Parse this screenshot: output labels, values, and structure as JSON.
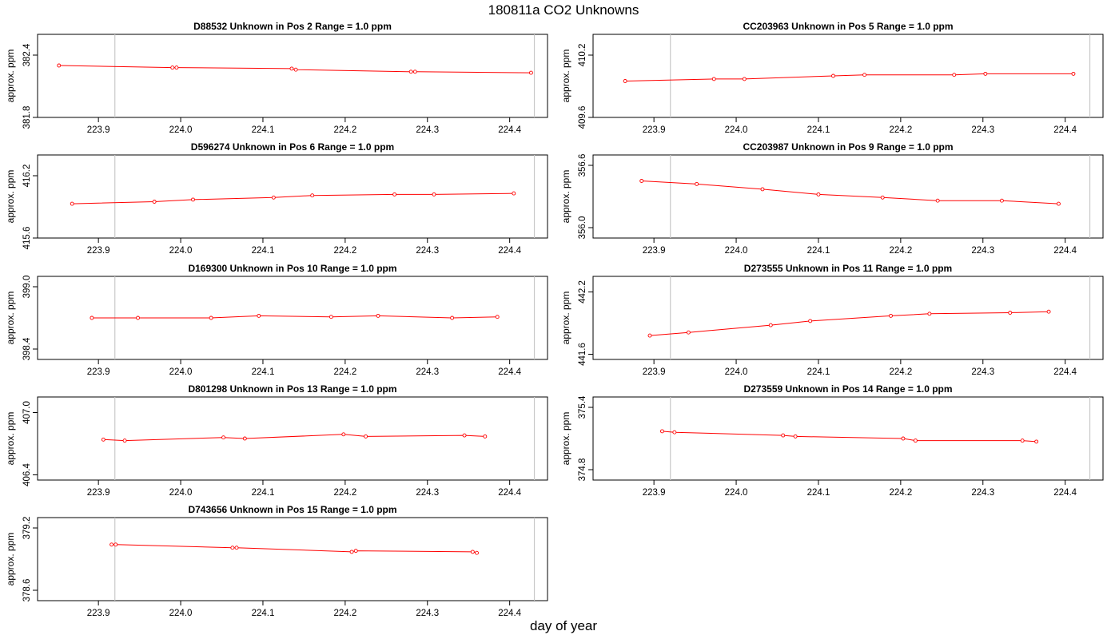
{
  "page_title": "180811a  CO2 Unknowns",
  "x_axis_label": "day of year",
  "y_axis_label": "approx. ppm",
  "chart_data": [
    {
      "type": "line",
      "title": "D88532    Unknown in Pos 2         Range = 1.0 ppm",
      "xlabel": "day of year",
      "ylabel": "approx. ppm",
      "xlim": [
        223.826,
        224.446
      ],
      "ylim": [
        381.8,
        382.6
      ],
      "xticks": [
        "223.9",
        "224.0",
        "224.1",
        "224.2",
        "224.3",
        "224.4"
      ],
      "yticks": [
        "381.8",
        "382.4"
      ],
      "vlines": [
        223.92,
        224.43
      ],
      "x": [
        223.852,
        223.99,
        223.995,
        224.135,
        224.14,
        224.28,
        224.285,
        224.426
      ],
      "y": [
        382.3,
        382.28,
        382.28,
        382.27,
        382.26,
        382.24,
        382.24,
        382.23
      ]
    },
    {
      "type": "line",
      "title": "CC203963    Unknown in Pos 5         Range = 1.0 ppm",
      "xlabel": "day of year",
      "ylabel": "approx. ppm",
      "xlim": [
        223.826,
        224.446
      ],
      "ylim": [
        409.6,
        410.4
      ],
      "xticks": [
        "223.9",
        "224.0",
        "224.1",
        "224.2",
        "224.3",
        "224.4"
      ],
      "yticks": [
        "409.6",
        "410.2"
      ],
      "vlines": [
        223.92,
        224.43
      ],
      "x": [
        223.865,
        223.973,
        224.01,
        224.118,
        224.156,
        224.265,
        224.303,
        224.41
      ],
      "y": [
        409.95,
        409.97,
        409.97,
        410.0,
        410.01,
        410.01,
        410.02,
        410.02
      ]
    },
    {
      "type": "line",
      "title": "D596274    Unknown in Pos 6         Range = 1.0 ppm",
      "xlabel": "day of year",
      "ylabel": "approx. ppm",
      "xlim": [
        223.826,
        224.446
      ],
      "ylim": [
        415.6,
        416.4
      ],
      "xticks": [
        "223.9",
        "224.0",
        "224.1",
        "224.2",
        "224.3",
        "224.4"
      ],
      "yticks": [
        "415.6",
        "416.2"
      ],
      "vlines": [
        223.92,
        224.43
      ],
      "x": [
        223.868,
        223.968,
        224.015,
        224.113,
        224.16,
        224.26,
        224.308,
        224.405
      ],
      "y": [
        415.93,
        415.95,
        415.97,
        415.99,
        416.01,
        416.02,
        416.02,
        416.03
      ]
    },
    {
      "type": "line",
      "title": "CC203987    Unknown in Pos 9         Range = 1.0 ppm",
      "xlabel": "day of year",
      "ylabel": "approx. ppm",
      "xlim": [
        223.826,
        224.446
      ],
      "ylim": [
        355.9,
        356.7
      ],
      "xticks": [
        "223.9",
        "224.0",
        "224.1",
        "224.2",
        "224.3",
        "224.4"
      ],
      "yticks": [
        "356.0",
        "356.6"
      ],
      "vlines": [
        223.92,
        224.43
      ],
      "x": [
        223.885,
        223.952,
        224.032,
        224.1,
        224.178,
        224.245,
        224.323,
        224.392
      ],
      "y": [
        356.45,
        356.42,
        356.37,
        356.32,
        356.29,
        356.26,
        356.26,
        356.23
      ]
    },
    {
      "type": "line",
      "title": "D169300    Unknown in Pos 10         Range = 1.0 ppm",
      "xlabel": "day of year",
      "ylabel": "approx. ppm",
      "xlim": [
        223.826,
        224.446
      ],
      "ylim": [
        398.3,
        399.1
      ],
      "xticks": [
        "223.9",
        "224.0",
        "224.1",
        "224.2",
        "224.3",
        "224.4"
      ],
      "yticks": [
        "398.4",
        "399.0"
      ],
      "vlines": [
        223.92,
        224.43
      ],
      "x": [
        223.892,
        223.948,
        224.037,
        224.095,
        224.183,
        224.24,
        224.33,
        224.385
      ],
      "y": [
        398.7,
        398.7,
        398.7,
        398.72,
        398.71,
        398.72,
        398.7,
        398.71
      ]
    },
    {
      "type": "line",
      "title": "D273555    Unknown in Pos 11         Range = 1.0 ppm",
      "xlabel": "day of year",
      "ylabel": "approx. ppm",
      "xlim": [
        223.826,
        224.446
      ],
      "ylim": [
        441.55,
        442.35
      ],
      "xticks": [
        "223.9",
        "224.0",
        "224.1",
        "224.2",
        "224.3",
        "224.4"
      ],
      "yticks": [
        "441.6",
        "442.2"
      ],
      "vlines": [
        223.92,
        224.43
      ],
      "x": [
        223.895,
        223.942,
        224.042,
        224.09,
        224.188,
        224.235,
        224.333,
        224.38
      ],
      "y": [
        441.78,
        441.81,
        441.88,
        441.92,
        441.97,
        441.99,
        442.0,
        442.01
      ]
    },
    {
      "type": "line",
      "title": "D801298    Unknown in Pos 13         Range = 1.0 ppm",
      "xlabel": "day of year",
      "ylabel": "approx. ppm",
      "xlim": [
        223.826,
        224.446
      ],
      "ylim": [
        406.35,
        407.15
      ],
      "xticks": [
        "223.9",
        "224.0",
        "224.1",
        "224.2",
        "224.3",
        "224.4"
      ],
      "yticks": [
        "406.4",
        "407.0"
      ],
      "vlines": [
        223.92,
        224.43
      ],
      "x": [
        223.906,
        223.932,
        224.052,
        224.078,
        224.198,
        224.225,
        224.345,
        224.37
      ],
      "y": [
        406.74,
        406.73,
        406.76,
        406.75,
        406.79,
        406.77,
        406.78,
        406.77
      ]
    },
    {
      "type": "line",
      "title": "D273559    Unknown in Pos 14         Range = 1.0 ppm",
      "xlabel": "day of year",
      "ylabel": "approx. ppm",
      "xlim": [
        223.826,
        224.446
      ],
      "ylim": [
        374.7,
        375.5
      ],
      "xticks": [
        "223.9",
        "224.0",
        "224.1",
        "224.2",
        "224.3",
        "224.4"
      ],
      "yticks": [
        "374.8",
        "375.4"
      ],
      "vlines": [
        223.92,
        224.43
      ],
      "x": [
        223.91,
        223.925,
        224.057,
        224.072,
        224.203,
        224.218,
        224.348,
        224.365
      ],
      "y": [
        375.17,
        375.16,
        375.13,
        375.12,
        375.1,
        375.08,
        375.08,
        375.07
      ]
    },
    {
      "type": "line",
      "title": "D743656    Unknown in Pos 15         Range = 1.0 ppm",
      "xlabel": "day of year",
      "ylabel": "approx. ppm",
      "xlim": [
        223.826,
        224.446
      ],
      "ylim": [
        378.5,
        379.3
      ],
      "xticks": [
        "223.9",
        "224.0",
        "224.1",
        "224.2",
        "224.3",
        "224.4"
      ],
      "yticks": [
        "378.6",
        "379.2"
      ],
      "vlines": [
        223.92,
        224.43
      ],
      "x": [
        223.916,
        223.921,
        224.063,
        224.068,
        224.208,
        224.213,
        224.355,
        224.36
      ],
      "y": [
        379.04,
        379.04,
        379.01,
        379.01,
        378.97,
        378.98,
        378.97,
        378.96
      ]
    }
  ],
  "colors": {
    "series": "#ff0000",
    "vline": "#c8c8c8",
    "axis": "#000000"
  }
}
